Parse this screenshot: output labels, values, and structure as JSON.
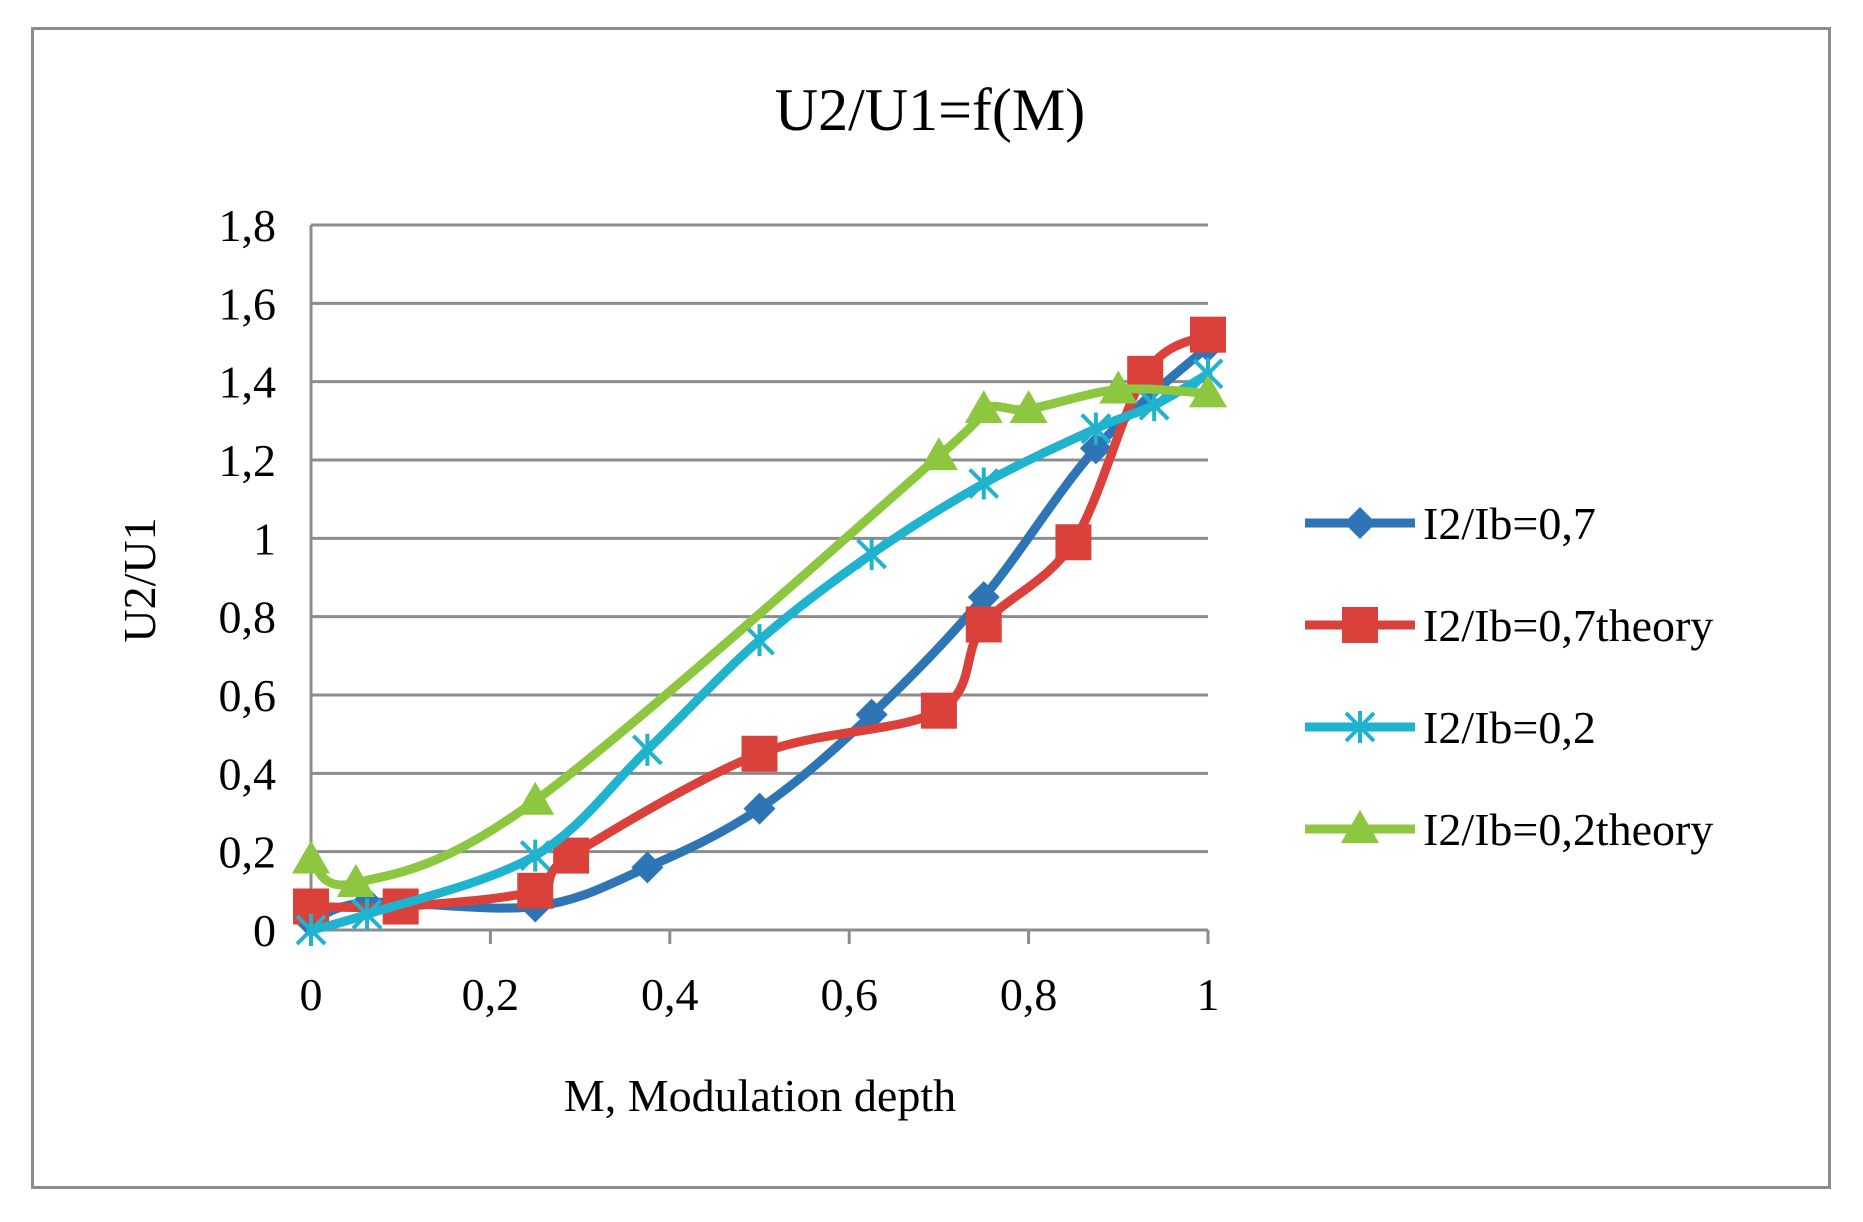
{
  "chart_data": {
    "type": "line",
    "title": "U2/U1=f(M)",
    "xlabel": "M, Modulation depth",
    "ylabel": "U2/U1",
    "xlim": [
      0,
      1
    ],
    "ylim": [
      0,
      1.8
    ],
    "x_ticks": [
      0,
      0.2,
      0.4,
      0.6,
      0.8,
      1
    ],
    "x_tick_labels": [
      "0",
      "0,2",
      "0,4",
      "0,6",
      "0,8",
      "1"
    ],
    "y_ticks": [
      0,
      0.2,
      0.4,
      0.6,
      0.8,
      1,
      1.2,
      1.4,
      1.6,
      1.8
    ],
    "y_tick_labels": [
      "0",
      "0,2",
      "0,4",
      "0,6",
      "0,8",
      "1",
      "1,2",
      "1,4",
      "1,6",
      "1,8"
    ],
    "grid": "horizontal",
    "legend_position": "right",
    "series": [
      {
        "name": "I2/Ib=0,7",
        "color": "#2e75b6",
        "marker": "diamond",
        "x": [
          0,
          0.0625,
          0.25,
          0.375,
          0.5,
          0.625,
          0.75,
          0.875,
          1
        ],
        "y": [
          0.02,
          0.07,
          0.06,
          0.16,
          0.31,
          0.55,
          0.85,
          1.23,
          1.49
        ]
      },
      {
        "name": "I2/Ib=0,7theory",
        "color": "#d9413a",
        "marker": "square",
        "x": [
          0,
          0.1,
          0.25,
          0.29,
          0.5,
          0.7,
          0.75,
          0.85,
          0.93,
          1
        ],
        "y": [
          0.06,
          0.06,
          0.1,
          0.19,
          0.45,
          0.56,
          0.78,
          0.99,
          1.42,
          1.52
        ]
      },
      {
        "name": "I2/Ib=0,2",
        "color": "#1fb3cf",
        "marker": "star",
        "x": [
          0,
          0.0625,
          0.25,
          0.375,
          0.5,
          0.625,
          0.75,
          0.875,
          0.94,
          1
        ],
        "y": [
          0.0,
          0.04,
          0.19,
          0.46,
          0.74,
          0.96,
          1.14,
          1.28,
          1.34,
          1.42
        ]
      },
      {
        "name": "I2/Ib=0,2theory",
        "color": "#8dc63f",
        "marker": "triangle",
        "x": [
          0,
          0.05,
          0.25,
          0.7,
          0.75,
          0.8,
          0.9,
          1
        ],
        "y": [
          0.18,
          0.12,
          0.33,
          1.21,
          1.33,
          1.33,
          1.38,
          1.37
        ]
      }
    ]
  }
}
